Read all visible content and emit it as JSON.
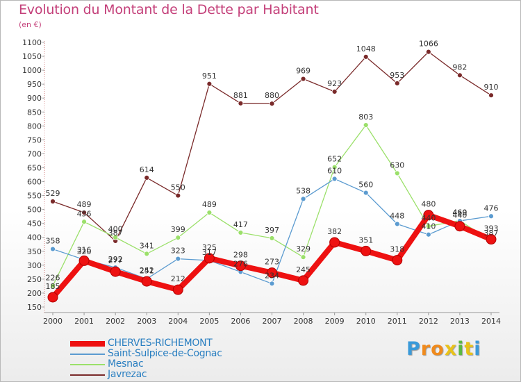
{
  "title": "Evolution du Montant de la Dette par Habitant",
  "unit_label": "(en €)",
  "brand": {
    "letters": [
      "P",
      "r",
      "o",
      "x",
      "i",
      "t",
      "i"
    ],
    "colors": [
      "#3a9ad9",
      "#f08a1c",
      "#f08a1c",
      "#e8c21a",
      "#5ab843",
      "#e8c21a",
      "#3a9ad9"
    ]
  },
  "chart_data": {
    "type": "line",
    "title": "Evolution du Montant de la Dette par Habitant",
    "ylabel": "(en €)",
    "xlabel": "",
    "x": [
      "2000",
      "2001",
      "2002",
      "2003",
      "2004",
      "2005",
      "2006",
      "2007",
      "2008",
      "2009",
      "2010",
      "2011",
      "2012",
      "2013",
      "2014"
    ],
    "ylim": [
      150,
      1100
    ],
    "yticks": [
      150,
      200,
      250,
      300,
      350,
      400,
      450,
      500,
      550,
      600,
      650,
      700,
      750,
      800,
      850,
      900,
      950,
      1000,
      1050,
      1100
    ],
    "legend_position": "bottom-left",
    "grid": false,
    "series": [
      {
        "name": "CHERVES-RICHEMONT",
        "color": "#ee1111",
        "values": [
          185,
          316,
          277,
          242,
          212,
          325,
          298,
          273,
          245,
          382,
          351,
          318,
          480,
          440,
          393
        ]
      },
      {
        "name": "Saint-Sulpice-de-Cognac",
        "color": "#5b9bd0",
        "values": [
          358,
          320,
          292,
          251,
          323,
          317,
          276,
          234,
          538,
          610,
          560,
          448,
          410,
          459,
          476
        ]
      },
      {
        "name": "Mesnac",
        "color": "#9be06a",
        "values": [
          226,
          456,
          400,
          341,
          399,
          489,
          417,
          397,
          329,
          652,
          803,
          630,
          440,
          460,
          387
        ]
      },
      {
        "name": "Javrezac",
        "color": "#7a2a2a",
        "values": [
          529,
          489,
          387,
          614,
          550,
          951,
          881,
          880,
          969,
          923,
          1048,
          953,
          1066,
          982,
          910
        ]
      }
    ]
  }
}
